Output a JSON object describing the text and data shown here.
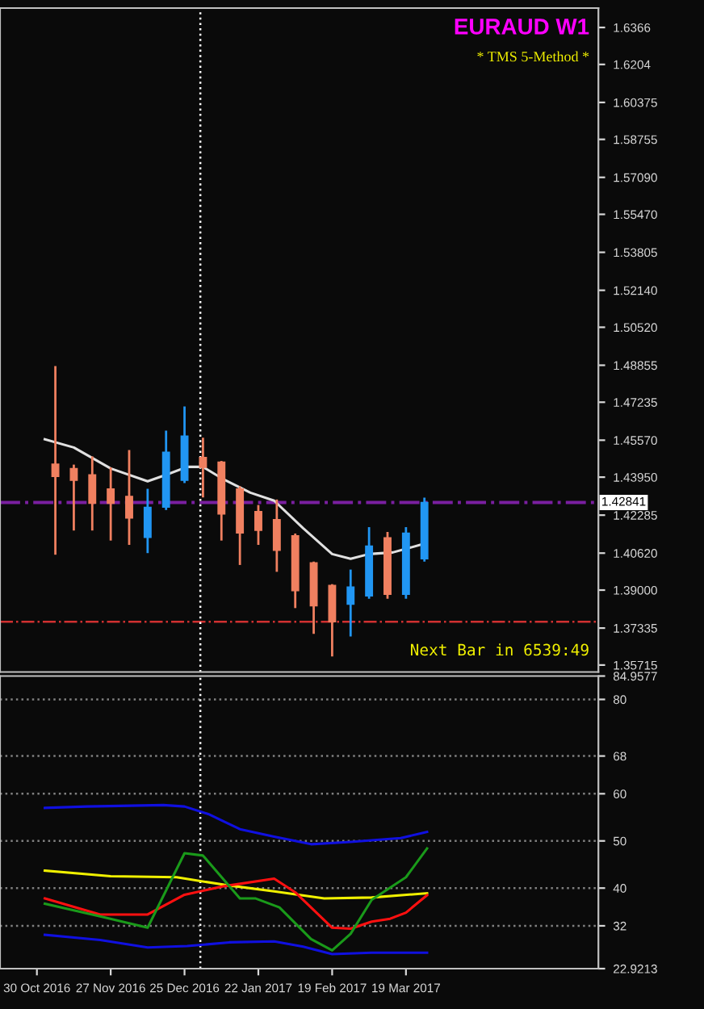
{
  "chart_data": [
    {
      "type": "candlestick",
      "title": "EURAUD W1",
      "subtitle": "* TMS 5-Method *",
      "x": [
        "2016-11-06",
        "2016-11-13",
        "2016-11-20",
        "2016-11-27",
        "2016-12-04",
        "2016-12-11",
        "2016-12-18",
        "2016-12-25",
        "2017-01-01",
        "2017-01-08",
        "2017-01-15",
        "2017-01-22",
        "2017-01-29",
        "2017-02-05",
        "2017-02-12",
        "2017-02-19",
        "2017-02-26",
        "2017-03-05",
        "2017-03-12",
        "2017-03-19",
        "2017-03-26"
      ],
      "ohlc": [
        [
          1.4452,
          1.4877,
          1.406,
          1.4398
        ],
        [
          1.4433,
          1.4445,
          1.4166,
          1.4381
        ],
        [
          1.4405,
          1.4481,
          1.4166,
          1.428
        ],
        [
          1.4343,
          1.4433,
          1.4122,
          1.428
        ],
        [
          1.4311,
          1.4509,
          1.4103,
          1.4216
        ],
        [
          1.4131,
          1.4339,
          1.4067,
          1.4263
        ],
        [
          1.4263,
          1.4594,
          1.4256,
          1.4504
        ],
        [
          1.4381,
          1.47,
          1.4374,
          1.4575
        ],
        [
          1.4481,
          1.4563,
          1.4311,
          1.4438
        ],
        [
          1.4461,
          1.4461,
          1.4122,
          1.4233
        ],
        [
          1.4343,
          1.435,
          1.4015,
          1.415
        ],
        [
          1.4244,
          1.4268,
          1.4103,
          1.4162
        ],
        [
          1.4209,
          1.4292,
          1.3985,
          1.4074
        ],
        [
          1.4138,
          1.4143,
          1.3826,
          1.3897
        ],
        [
          1.402,
          1.402,
          1.3713,
          1.3831
        ],
        [
          1.3921,
          1.3921,
          1.3614,
          1.3761
        ],
        [
          1.3838,
          1.3985,
          1.3702,
          1.3914
        ],
        [
          1.3874,
          1.4171,
          1.3867,
          1.4093
        ],
        [
          1.4129,
          1.415,
          1.3867,
          1.3881
        ],
        [
          1.3881,
          1.4171,
          1.3867,
          1.415
        ],
        [
          1.4037,
          1.43,
          1.403,
          1.4284
        ]
      ],
      "colors": [
        "#f08060",
        "#f08060",
        "#f08060",
        "#f08060",
        "#f08060",
        "#2196f3",
        "#2196f3",
        "#2196f3",
        "#f08060",
        "#f08060",
        "#f08060",
        "#f08060",
        "#f08060",
        "#f08060",
        "#f08060",
        "#f08060",
        "#2196f3",
        "#2196f3",
        "#f08060",
        "#2196f3",
        "#2196f3"
      ],
      "series": [
        {
          "type": "line",
          "color": "#e0e0e0",
          "x": [
            "2016-11-02",
            "2016-11-13",
            "2016-11-27",
            "2016-12-11",
            "2016-12-18",
            "2016-12-26",
            "2017-01-01",
            "2017-01-09",
            "2017-01-19",
            "2017-01-28",
            "2017-02-08",
            "2017-02-19",
            "2017-02-26",
            "2017-03-05",
            "2017-03-14",
            "2017-03-25"
          ],
          "values": [
            1.4561,
            1.4525,
            1.4433,
            1.4377,
            1.4405,
            1.444,
            1.444,
            1.4384,
            1.4327,
            1.4292,
            1.4171,
            1.4058,
            1.4037,
            1.4058,
            1.4065,
            1.41
          ]
        }
      ],
      "xlim": [
        "2016-10-16",
        "2017-05-31"
      ],
      "ylim": [
        1.3541,
        1.6451
      ],
      "yticks": [
        1.6366,
        1.6204,
        {
          "value": 1.60375,
          "label": "1.60375"
        },
        1.58755,
        {
          "value": 1.5709,
          "label": "1.57090"
        },
        {
          "value": 1.5547,
          "label": "1.55470"
        },
        1.53805,
        {
          "value": 1.5214,
          "label": "1.52140"
        },
        {
          "value": 1.5052,
          "label": "1.50520"
        },
        1.48855,
        1.47235,
        {
          "value": 1.4557,
          "label": "1.45570"
        },
        {
          "value": 1.4395,
          "label": "1.43950"
        },
        1.42285,
        {
          "value": 1.4062,
          "label": "1.40620"
        },
        {
          "value": 1.39,
          "label": "1.39000"
        },
        1.37335,
        1.35715
      ],
      "tick_labels": "y",
      "grid": false,
      "ref_lines": [
        {
          "axis": "y",
          "value": 1.42841,
          "label": "1.42841",
          "color": "#7a1fa0",
          "line_style": "dashdot"
        },
        {
          "axis": "y",
          "value": 1.3761,
          "color": "#d03030",
          "line_style": "dashdot"
        },
        {
          "axis": "x",
          "value": "2016-12-31",
          "color": "#ffffff",
          "line_style": "dotted"
        }
      ],
      "annotations": [
        "Next Bar in 6539:49"
      ]
    },
    {
      "type": "line",
      "series": [
        {
          "color": "#1010e0",
          "x": [
            "2016-11-02",
            "2016-11-18",
            "2016-12-17",
            "2016-12-25",
            "2017-01-03",
            "2017-01-15",
            "2017-01-28",
            "2017-02-11",
            "2017-02-26",
            "2017-03-17",
            "2017-03-27"
          ],
          "values": [
            57.0,
            57.3,
            57.6,
            57.3,
            55.7,
            52.5,
            50.9,
            49.3,
            49.8,
            50.6,
            51.9
          ]
        },
        {
          "color": "#1010e0",
          "x": [
            "2016-11-02",
            "2016-11-23",
            "2016-12-11",
            "2016-12-26",
            "2017-01-11",
            "2017-01-28",
            "2017-02-08",
            "2017-02-19",
            "2017-03-06",
            "2017-03-27"
          ],
          "values": [
            30.1,
            29.0,
            27.4,
            27.7,
            28.5,
            28.7,
            27.6,
            26.0,
            26.3,
            26.3
          ]
        },
        {
          "color": "#f0f000",
          "x": [
            "2016-11-02",
            "2016-11-27",
            "2016-12-22",
            "2017-01-09",
            "2017-01-28",
            "2017-02-16",
            "2017-03-06",
            "2017-03-27"
          ],
          "values": [
            43.7,
            42.5,
            42.3,
            40.7,
            39.3,
            37.8,
            38.0,
            38.9
          ]
        },
        {
          "color": "#ff1010",
          "x": [
            "2016-11-02",
            "2016-11-23",
            "2016-12-11",
            "2016-12-25",
            "2017-01-09",
            "2017-01-28",
            "2017-02-05",
            "2017-02-19",
            "2017-02-26",
            "2017-03-06",
            "2017-03-13",
            "2017-03-19",
            "2017-03-27"
          ],
          "values": [
            37.8,
            34.4,
            34.4,
            38.6,
            40.4,
            42.0,
            39.1,
            31.6,
            31.4,
            32.9,
            33.5,
            34.8,
            38.5
          ]
        },
        {
          "color": "#1a9a1a",
          "x": [
            "2016-11-02",
            "2016-11-23",
            "2016-12-11",
            "2016-12-25",
            "2017-01-01",
            "2017-01-15",
            "2017-01-21",
            "2017-01-30",
            "2017-02-11",
            "2017-02-19",
            "2017-02-26",
            "2017-03-06",
            "2017-03-19",
            "2017-03-27"
          ],
          "values": [
            36.7,
            34.0,
            31.6,
            47.4,
            46.9,
            37.8,
            37.8,
            35.9,
            29.2,
            26.8,
            30.3,
            37.5,
            42.3,
            48.4
          ]
        }
      ],
      "xlim": [
        "2016-10-16",
        "2017-05-31"
      ],
      "xticks": [
        {
          "value": "2016-10-30",
          "label": "30 Oct 2016"
        },
        {
          "value": "2016-11-27",
          "label": "27 Nov 2016"
        },
        {
          "value": "2016-12-25",
          "label": "25 Dec 2016"
        },
        {
          "value": "2017-01-22",
          "label": "22 Jan 2017"
        },
        {
          "value": "2017-02-19",
          "label": "19 Feb 2017"
        },
        {
          "value": "2017-03-19",
          "label": "19 Mar 2017"
        }
      ],
      "ylim": [
        22.9213,
        84.9577
      ],
      "yticks": [
        84.9577,
        80,
        68,
        60,
        50,
        40,
        32,
        22.9213
      ],
      "grid": false,
      "marker": "none",
      "line_style": "solid",
      "ref_lines": [
        {
          "axis": "y",
          "value": 80,
          "color": "#808080",
          "line_style": "dotted"
        },
        {
          "axis": "y",
          "value": 68,
          "color": "#808080",
          "line_style": "dotted"
        },
        {
          "axis": "y",
          "value": 60,
          "color": "#808080",
          "line_style": "dotted"
        },
        {
          "axis": "y",
          "value": 50,
          "color": "#808080",
          "line_style": "dotted"
        },
        {
          "axis": "y",
          "value": 40,
          "color": "#808080",
          "line_style": "dotted"
        },
        {
          "axis": "y",
          "value": 32,
          "color": "#808080",
          "line_style": "dotted"
        },
        {
          "axis": "x",
          "value": "2016-12-31",
          "color": "#ffffff",
          "line_style": "dotted"
        }
      ]
    }
  ]
}
